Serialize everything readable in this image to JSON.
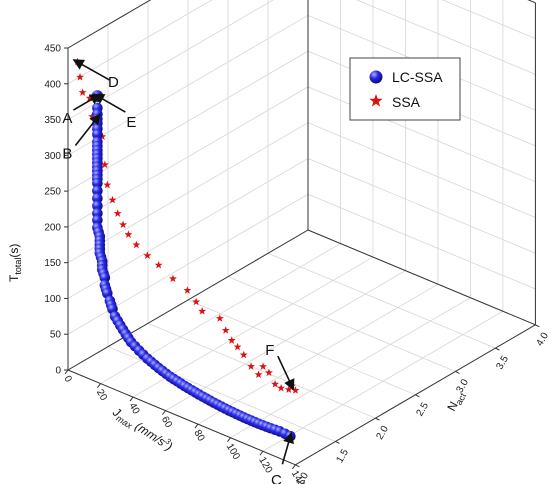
{
  "chart_data": {
    "type": "scatter",
    "projection": "3d",
    "xlabel": "J",
    "xlabel_sub": "max",
    "xlabel_unit": " (mm/s",
    "xlabel_sup": "3",
    "xlabel_close": ")",
    "ylabel": "N",
    "ylabel_sub": "act",
    "zlabel": "T",
    "zlabel_sub": "total",
    "zlabel_unit": "(s)",
    "x_ticks": [
      "0",
      "20",
      "40",
      "60",
      "80",
      "100",
      "120",
      "140"
    ],
    "y_ticks": [
      "1.0",
      "1.5",
      "2.0",
      "2.5",
      "3.0",
      "3.5",
      "4.0"
    ],
    "z_ticks": [
      "0",
      "50",
      "100",
      "150",
      "200",
      "250",
      "300",
      "350",
      "400",
      "450"
    ],
    "xlim": [
      0,
      140
    ],
    "ylim": [
      1.0,
      4.0
    ],
    "zlim": [
      0,
      450
    ],
    "grid": true,
    "legend": "top-right",
    "series": [
      {
        "name": "LC-SSA",
        "marker": "sphere",
        "color": "#1a1ad6",
        "points": [
          [
            18.1,
            1.0,
            383.2
          ],
          [
            18.1,
            1.0,
            374.8
          ],
          [
            18.1,
            1.0,
            361.7
          ],
          [
            18.1,
            1.0,
            346.4
          ],
          [
            18.1,
            1.0,
            335.9
          ],
          [
            18.1,
            1.0,
            324.3
          ],
          [
            18.1,
            1.0,
            312.7
          ],
          [
            18.1,
            1.0,
            301.2
          ],
          [
            18.1,
            1.0,
            289.6
          ],
          [
            18.1,
            1.0,
            278.1
          ],
          [
            18.1,
            1.0,
            267.6
          ],
          [
            18.1,
            1.0,
            257.1
          ],
          [
            18.1,
            1.0,
            246.6
          ],
          [
            18.1,
            1.0,
            236.1
          ],
          [
            18.1,
            1.0,
            226.6
          ],
          [
            18.1,
            1.0,
            216.1
          ],
          [
            19.6,
            1.0,
            205.1
          ],
          [
            19.6,
            1.0,
            193.6
          ],
          [
            19.6,
            1.0,
            182.0
          ],
          [
            21.1,
            1.0,
            172.0
          ],
          [
            21.1,
            1.0,
            160.5
          ],
          [
            22.7,
            1.0,
            150.5
          ],
          [
            22.7,
            1.0,
            140.0
          ],
          [
            24.2,
            1.0,
            130.0
          ],
          [
            25.8,
            1.0,
            121.1
          ],
          [
            27.4,
            1.0,
            111.1
          ],
          [
            29.0,
            1.0,
            102.2
          ],
          [
            32.2,
            1.0,
            92.9
          ],
          [
            35.5,
            1.0,
            84.0
          ],
          [
            38.8,
            1.0,
            75.8
          ],
          [
            43.8,
            1.0,
            68.6
          ],
          [
            48.9,
            1.0,
            62.1
          ],
          [
            55.8,
            1.0,
            55.6
          ],
          [
            62.8,
            1.0,
            50.1
          ],
          [
            71.7,
            1.0,
            45.6
          ],
          [
            80.7,
            1.0,
            42.0
          ],
          [
            89.8,
            1.0,
            39.2
          ],
          [
            99.0,
            1.0,
            37.2
          ],
          [
            108.2,
            1.0,
            36.1
          ],
          [
            117.3,
            1.0,
            35.9
          ],
          [
            124.7,
            1.0,
            36.6
          ],
          [
            130.3,
            1.0,
            37.6
          ],
          [
            136.9,
            1.0,
            37.0
          ]
        ]
      },
      {
        "name": "SSA",
        "marker": "star",
        "color": "#e01010",
        "points": [
          [
            5.8,
            1.0,
            436.3
          ],
          [
            7.4,
            1.0,
            416.3
          ],
          [
            9.0,
            1.0,
            396.3
          ],
          [
            13.4,
            1.0,
            392.6
          ],
          [
            14.9,
            1.0,
            368.3
          ],
          [
            21.1,
            1.0,
            346.1
          ],
          [
            22.7,
            1.0,
            308.4
          ],
          [
            24.2,
            1.0,
            281.5
          ],
          [
            27.4,
            1.0,
            263.5
          ],
          [
            30.6,
            1.0,
            247.7
          ],
          [
            33.9,
            1.0,
            235.1
          ],
          [
            37.2,
            1.0,
            224.5
          ],
          [
            42.1,
            1.0,
            214.7
          ],
          [
            48.9,
            1.0,
            206.2
          ],
          [
            55.8,
            1.0,
            199.4
          ],
          [
            64.6,
            1.0,
            188.7
          ],
          [
            73.5,
            1.0,
            180.8
          ],
          [
            78.9,
            1.0,
            169.9
          ],
          [
            82.6,
            1.0,
            160.3
          ],
          [
            93.5,
            1.0,
            160.5
          ],
          [
            97.1,
            1.0,
            147.3
          ],
          [
            100.8,
            1.0,
            136.7
          ],
          [
            104.4,
            1.0,
            131.0
          ],
          [
            108.2,
            1.0,
            123.5
          ],
          [
            112.7,
            1.0,
            111.6
          ],
          [
            117.3,
            1.0,
            104.5
          ],
          [
            120.1,
            1.0,
            118.4
          ],
          [
            123.7,
            1.0,
            113.3
          ],
          [
            127.5,
            1.0,
            100.9
          ],
          [
            131.2,
            1.0,
            98.9
          ],
          [
            135.9,
            1.0,
            101.2
          ],
          [
            137.8,
            1.0,
            108.1
          ],
          [
            140.0,
            1.0,
            104.0
          ]
        ]
      }
    ],
    "annotations": [
      {
        "label": "A",
        "x": 18.1,
        "y": 1.0,
        "z": 400
      },
      {
        "label": "B",
        "x": 18.1,
        "y": 1.0,
        "z": 370
      },
      {
        "label": "C",
        "x": 136.9,
        "y": 1.0,
        "z": 37
      },
      {
        "label": "D",
        "x": 5.8,
        "y": 1.0,
        "z": 436
      },
      {
        "label": "E",
        "x": 18.1,
        "y": 1.0,
        "z": 400
      },
      {
        "label": "F",
        "x": 137.8,
        "y": 1.0,
        "z": 108
      }
    ]
  }
}
